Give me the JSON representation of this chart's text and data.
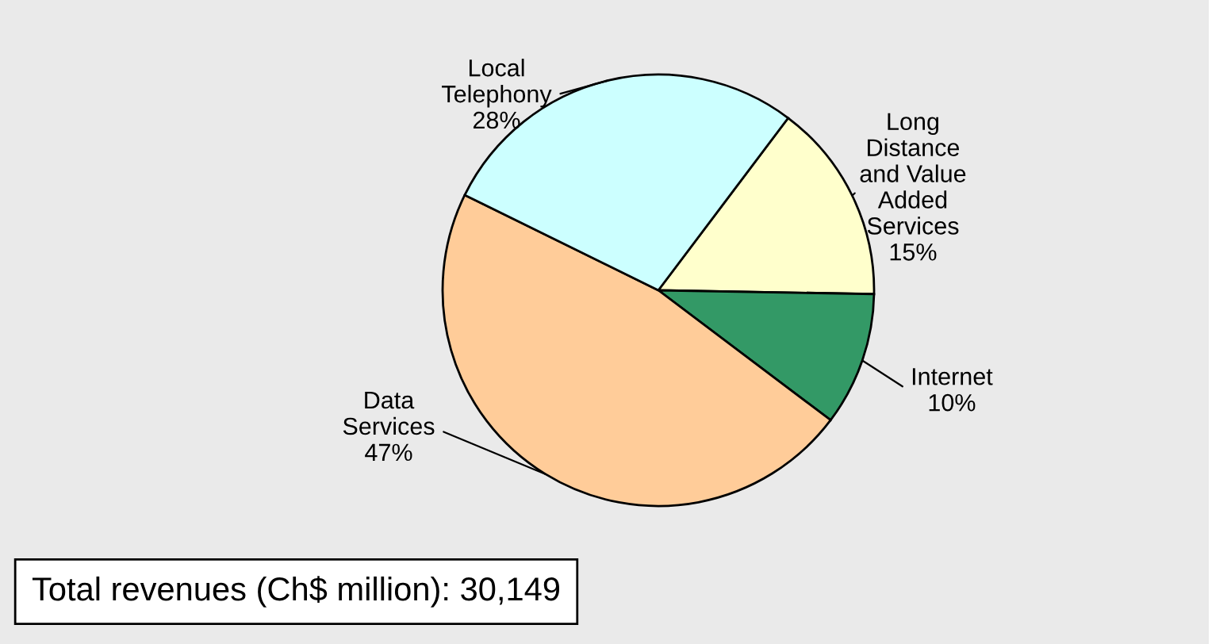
{
  "chart_data": {
    "type": "pie",
    "categories": [
      "Long\nDistance\nand Value\nAdded\nServices",
      "Internet",
      "Data\nServices",
      "Local\nTelephony"
    ],
    "values": [
      15,
      10,
      47,
      28
    ],
    "value_labels": [
      "15%",
      "10%",
      "47%",
      "28%"
    ],
    "colors": [
      "#ffffcc",
      "#339966",
      "#ffcc99",
      "#ccffff"
    ],
    "annotations": [
      "Total revenues (Ch$ million): 30,149"
    ]
  }
}
